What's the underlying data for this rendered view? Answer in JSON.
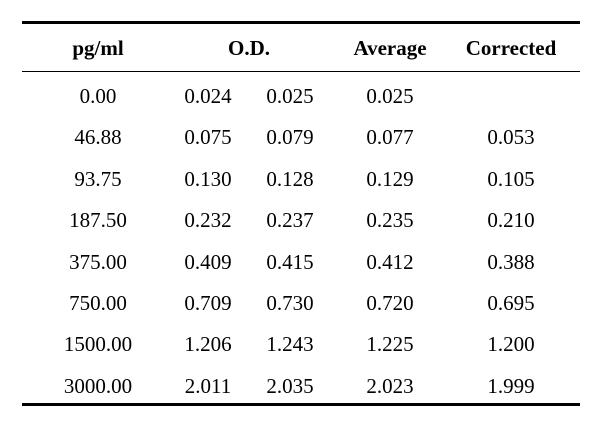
{
  "table": {
    "headers": {
      "conc": "pg/ml",
      "od": "O.D.",
      "average": "Average",
      "corrected": "Corrected"
    },
    "rows": [
      {
        "conc": "0.00",
        "od1": "0.024",
        "od2": "0.025",
        "average": "0.025",
        "corrected": ""
      },
      {
        "conc": "46.88",
        "od1": "0.075",
        "od2": "0.079",
        "average": "0.077",
        "corrected": "0.053"
      },
      {
        "conc": "93.75",
        "od1": "0.130",
        "od2": "0.128",
        "average": "0.129",
        "corrected": "0.105"
      },
      {
        "conc": "187.50",
        "od1": "0.232",
        "od2": "0.237",
        "average": "0.235",
        "corrected": "0.210"
      },
      {
        "conc": "375.00",
        "od1": "0.409",
        "od2": "0.415",
        "average": "0.412",
        "corrected": "0.388"
      },
      {
        "conc": "750.00",
        "od1": "0.709",
        "od2": "0.730",
        "average": "0.720",
        "corrected": "0.695"
      },
      {
        "conc": "1500.00",
        "od1": "1.206",
        "od2": "1.243",
        "average": "1.225",
        "corrected": "1.200"
      },
      {
        "conc": "3000.00",
        "od1": "2.011",
        "od2": "2.035",
        "average": "2.023",
        "corrected": "1.999"
      }
    ]
  }
}
